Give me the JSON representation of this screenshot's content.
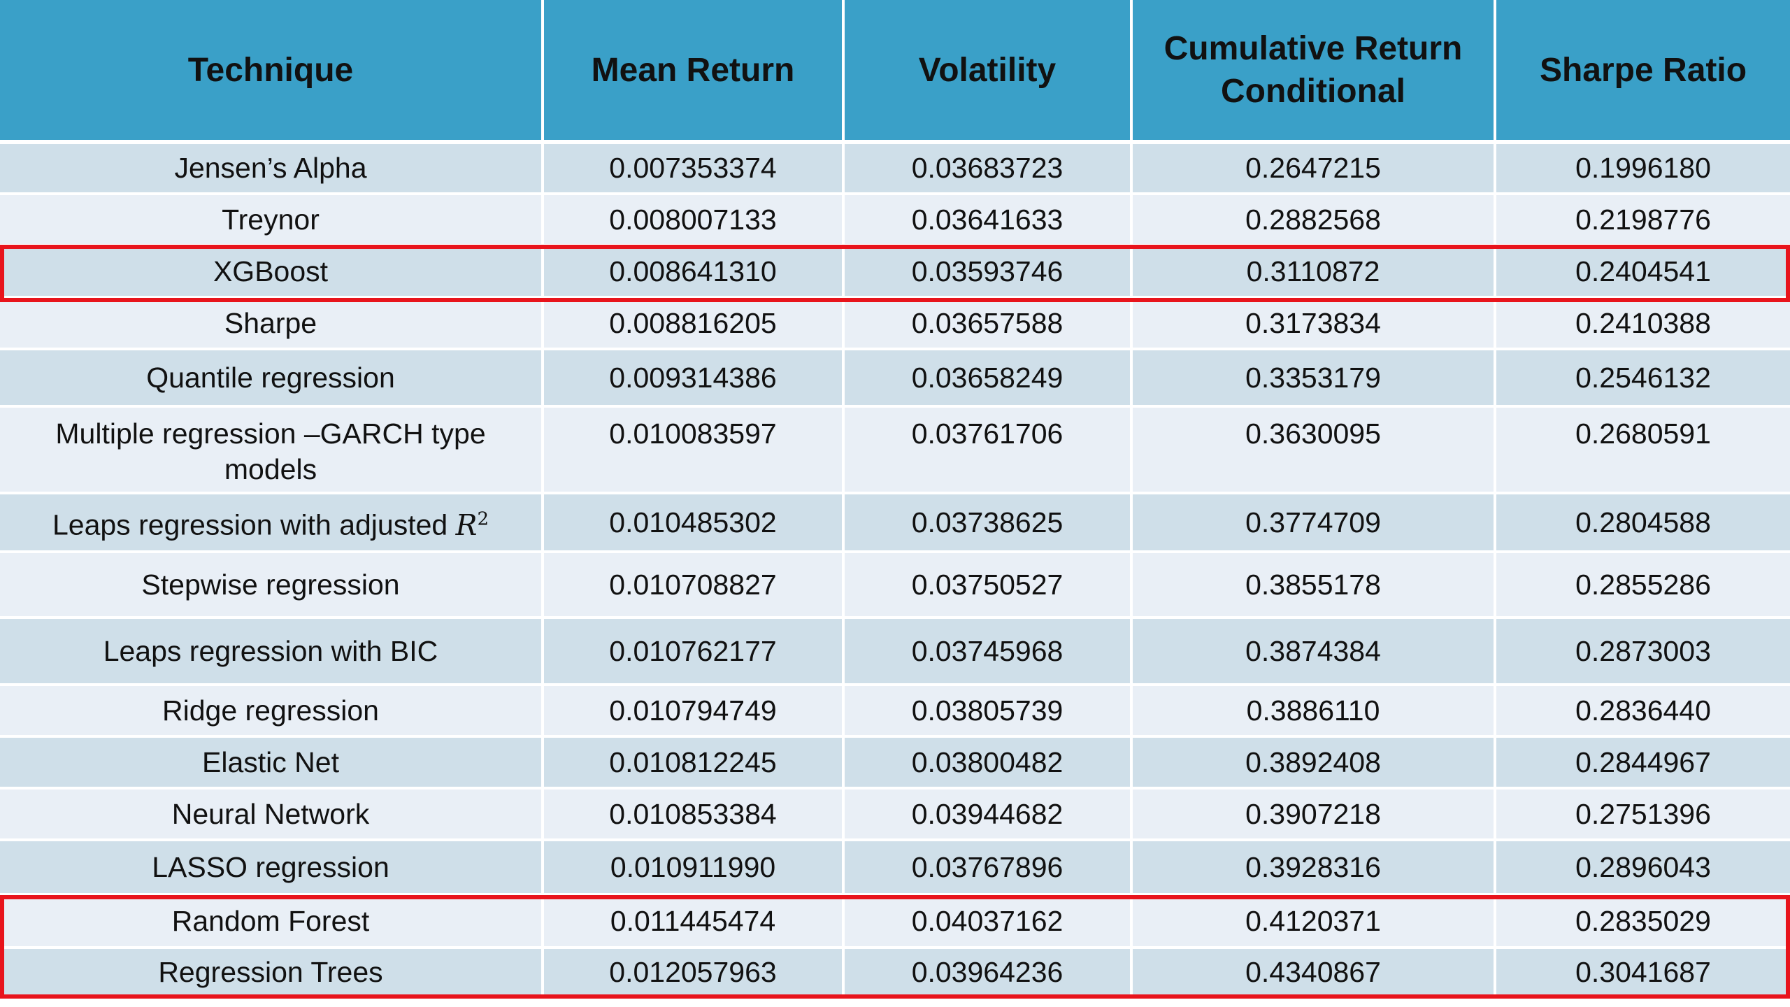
{
  "table": {
    "headers": [
      "Technique",
      "Mean Return",
      "Volatility",
      "Cumulative Return Conditional",
      "Sharpe Ratio"
    ],
    "rows": [
      {
        "technique": "Jensen’s Alpha",
        "mean_return": "0.007353374",
        "volatility": "0.03683723",
        "cumulative": "0.2647215",
        "sharpe": "0.1996180"
      },
      {
        "technique": "Treynor",
        "mean_return": "0.008007133",
        "volatility": "0.03641633",
        "cumulative": "0.2882568",
        "sharpe": "0.2198776"
      },
      {
        "technique": "XGBoost",
        "mean_return": "0.008641310",
        "volatility": "0.03593746",
        "cumulative": "0.3110872",
        "sharpe": "0.2404541"
      },
      {
        "technique": "Sharpe",
        "mean_return": "0.008816205",
        "volatility": "0.03657588",
        "cumulative": "0.3173834",
        "sharpe": "0.2410388"
      },
      {
        "technique": "Quantile regression",
        "mean_return": "0.009314386",
        "volatility": "0.03658249",
        "cumulative": "0.3353179",
        "sharpe": "0.2546132"
      },
      {
        "technique": "Multiple regression –GARCH type models",
        "mean_return": "0.010083597",
        "volatility": "0.03761706",
        "cumulative": "0.3630095",
        "sharpe": "0.2680591"
      },
      {
        "technique": "Leaps regression with adjusted",
        "technique_math": "R",
        "technique_sup": "2",
        "mean_return": "0.010485302",
        "volatility": "0.03738625",
        "cumulative": "0.3774709",
        "sharpe": "0.2804588"
      },
      {
        "technique": "Stepwise regression",
        "mean_return": "0.010708827",
        "volatility": "0.03750527",
        "cumulative": "0.3855178",
        "sharpe": "0.2855286"
      },
      {
        "technique": "Leaps regression with BIC",
        "mean_return": "0.010762177",
        "volatility": "0.03745968",
        "cumulative": "0.3874384",
        "sharpe": "0.2873003"
      },
      {
        "technique": "Ridge regression",
        "mean_return": "0.010794749",
        "volatility": "0.03805739",
        "cumulative": "0.3886110",
        "sharpe": "0.2836440"
      },
      {
        "technique": "Elastic Net",
        "mean_return": "0.010812245",
        "volatility": "0.03800482",
        "cumulative": "0.3892408",
        "sharpe": "0.2844967"
      },
      {
        "technique": "Neural Network",
        "mean_return": "0.010853384",
        "volatility": "0.03944682",
        "cumulative": "0.3907218",
        "sharpe": "0.2751396"
      },
      {
        "technique": "LASSO regression",
        "mean_return": "0.010911990",
        "volatility": "0.03767896",
        "cumulative": "0.3928316",
        "sharpe": "0.2896043"
      },
      {
        "technique": "Random Forest",
        "mean_return": "0.011445474",
        "volatility": "0.04037162",
        "cumulative": "0.4120371",
        "sharpe": "0.2835029"
      },
      {
        "technique": "Regression Trees",
        "mean_return": "0.012057963",
        "volatility": "0.03964236",
        "cumulative": "0.4340867",
        "sharpe": "0.3041687"
      }
    ]
  },
  "colors": {
    "header_bg": "#3aa0c8",
    "row_even_bg": "#cfdfe9",
    "row_odd_bg": "#e9eff6",
    "highlight": "#e8141c"
  }
}
